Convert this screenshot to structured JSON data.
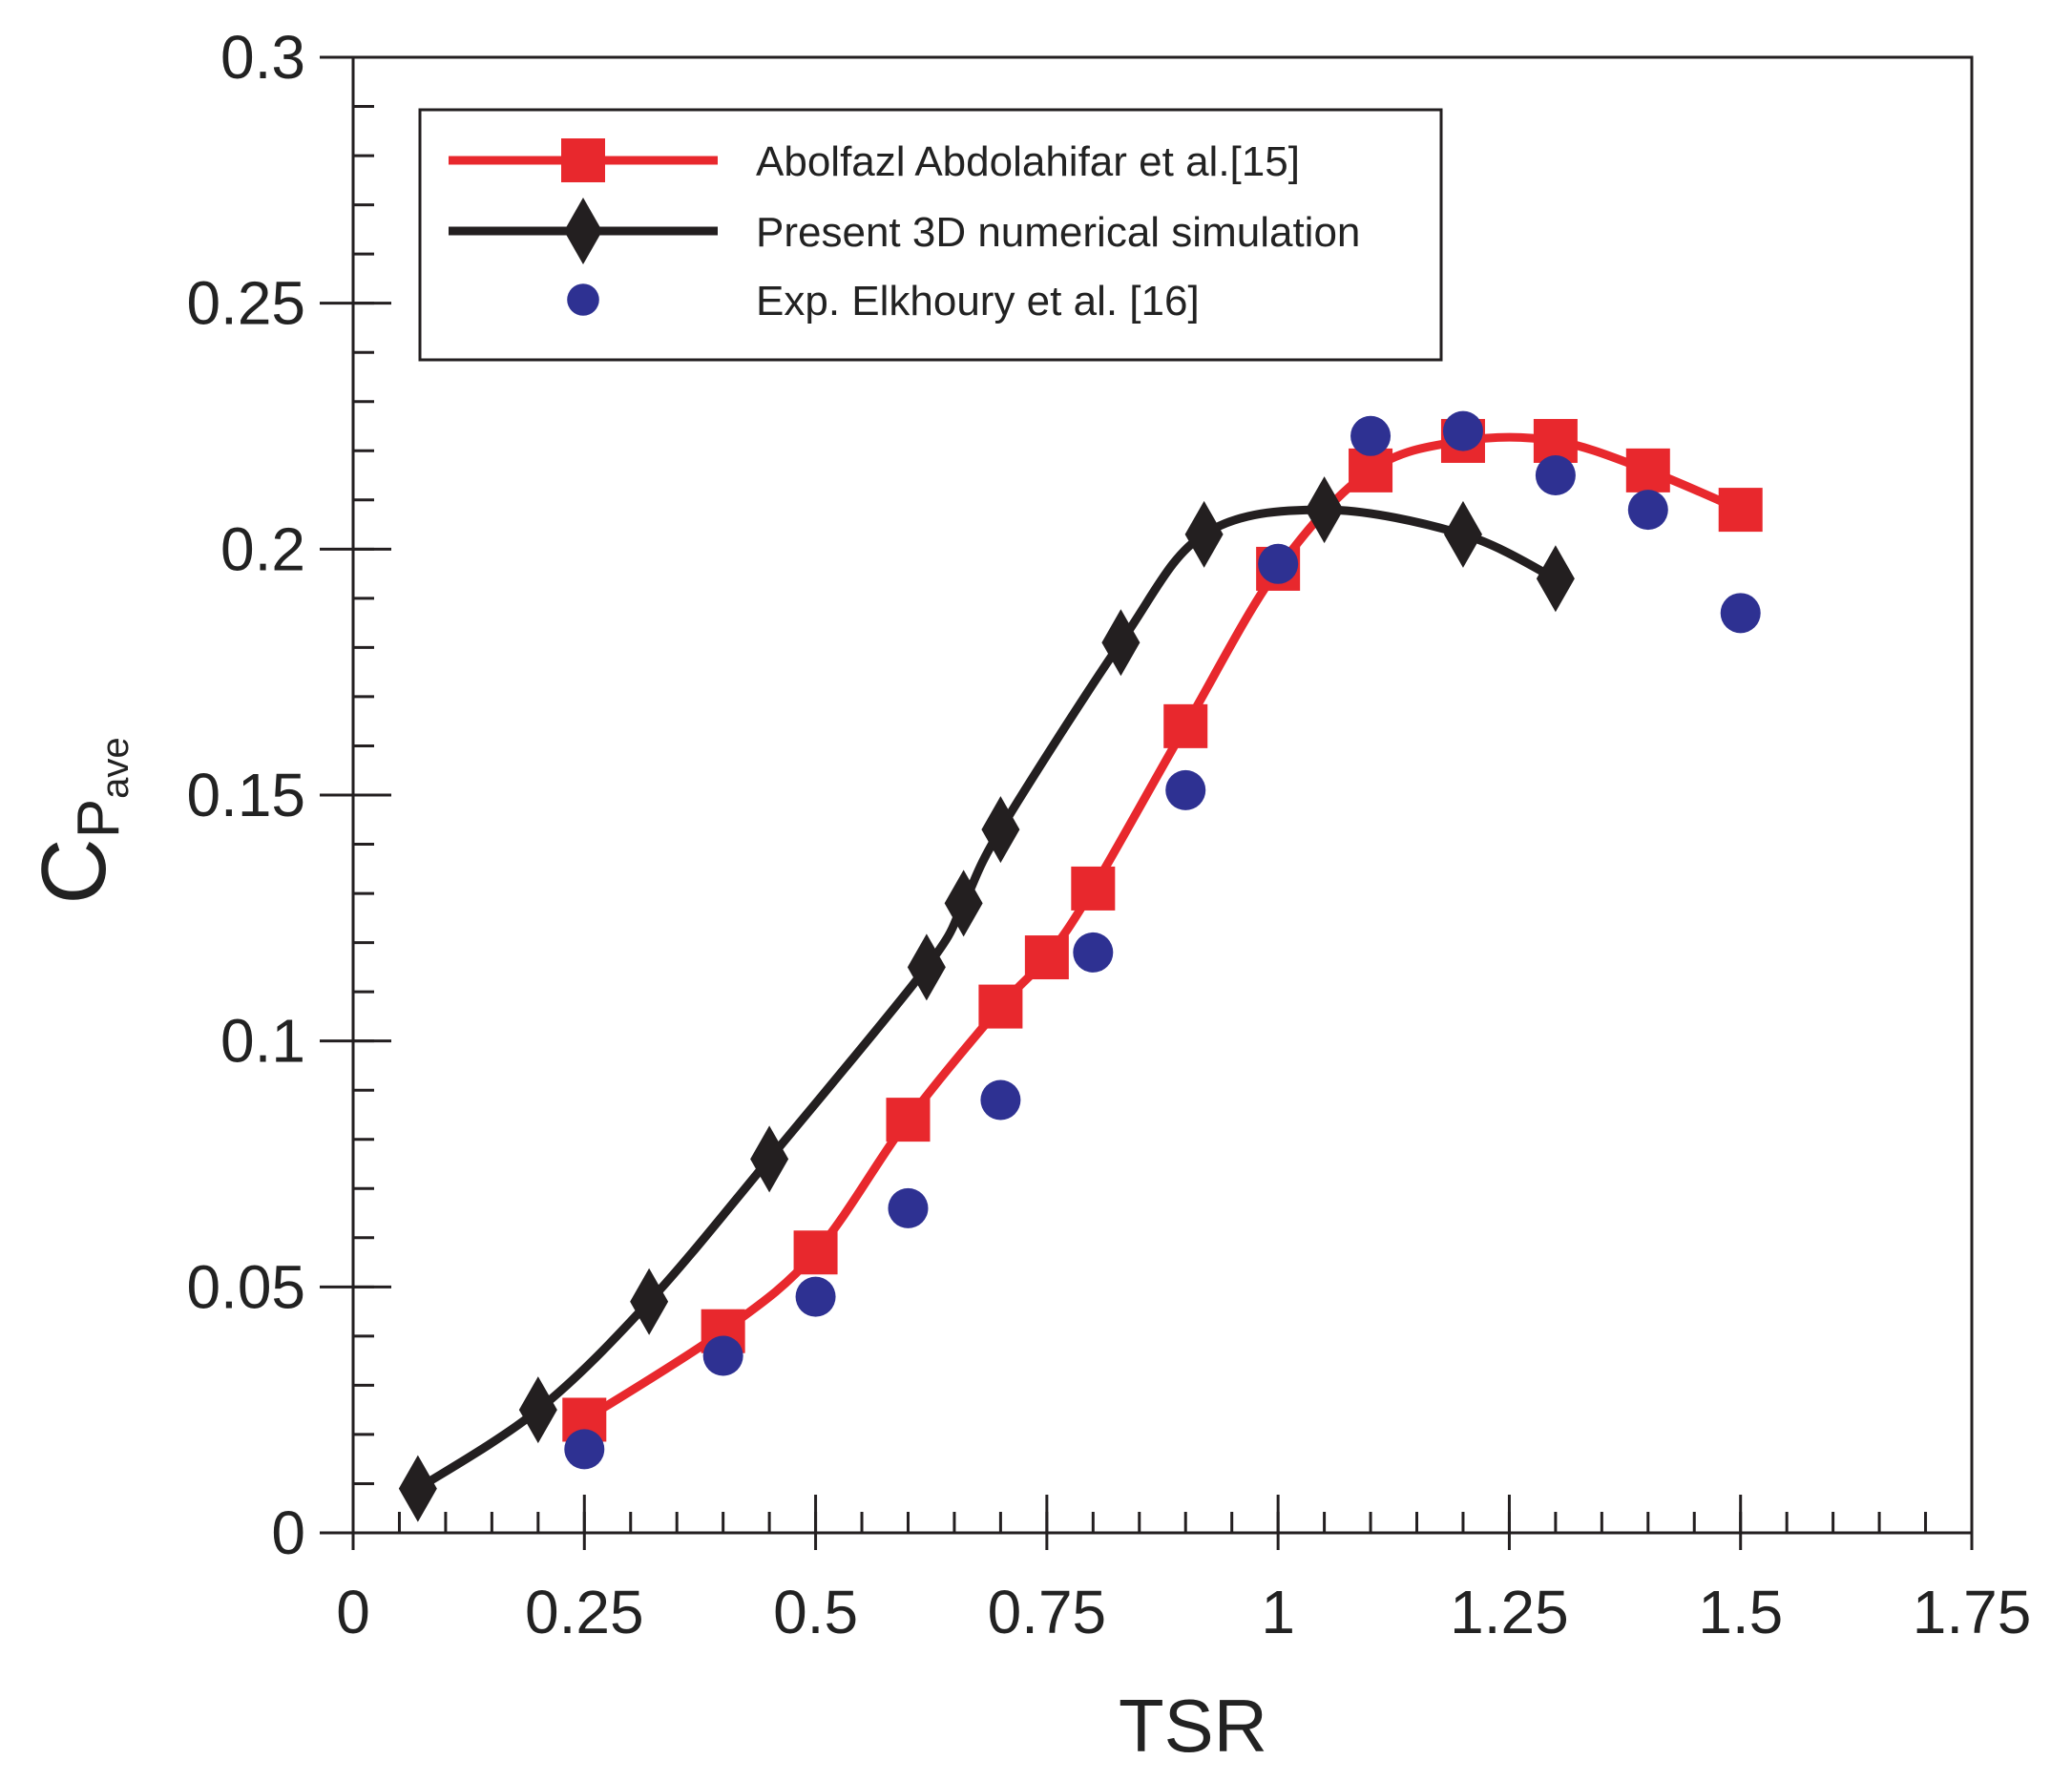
{
  "chart_data": {
    "type": "line",
    "title": "",
    "xlabel": "TSR",
    "ylabel": {
      "main": "C",
      "sub": "P",
      "subsub": "ave"
    },
    "xlim": [
      0,
      1.75
    ],
    "ylim": [
      0,
      0.3
    ],
    "x_ticks": [
      0,
      0.25,
      0.5,
      0.75,
      1,
      1.25,
      1.5,
      1.75
    ],
    "x_tick_labels": [
      "0",
      "0.25",
      "0.5",
      "0.75",
      "1",
      "1.25",
      "1.5",
      "1.75"
    ],
    "y_ticks": [
      0,
      0.05,
      0.1,
      0.15,
      0.2,
      0.25,
      0.3
    ],
    "y_tick_labels": [
      "0",
      "0.05",
      "0.1",
      "0.15",
      "0.2",
      "0.25",
      "0.3"
    ],
    "x_minor_step": 0.05,
    "y_minor_step": 0.01,
    "grid": false,
    "legend_position": "top-left",
    "series": [
      {
        "name": "Abolfazl Abdolahifar et al.[15]",
        "color": "#e8282d",
        "marker": "square",
        "line": true,
        "x": [
          0.25,
          0.4,
          0.5,
          0.6,
          0.7,
          0.75,
          0.8,
          0.9,
          1.0,
          1.1,
          1.2,
          1.3,
          1.4,
          1.5
        ],
        "y": [
          0.023,
          0.041,
          0.057,
          0.084,
          0.107,
          0.117,
          0.131,
          0.164,
          0.196,
          0.216,
          0.222,
          0.222,
          0.216,
          0.208
        ]
      },
      {
        "name": "Present 3D numerical simulation",
        "color": "#231f20",
        "marker": "diamond",
        "line": true,
        "x": [
          0.07,
          0.2,
          0.32,
          0.45,
          0.62,
          0.66,
          0.7,
          0.83,
          0.92,
          1.05,
          1.2,
          1.3
        ],
        "y": [
          0.009,
          0.025,
          0.047,
          0.076,
          0.115,
          0.128,
          0.143,
          0.181,
          0.203,
          0.208,
          0.203,
          0.194
        ]
      },
      {
        "name": "Exp. Elkhoury et  al. [16]",
        "color": "#2e3192",
        "marker": "circle",
        "line": false,
        "x": [
          0.25,
          0.4,
          0.5,
          0.6,
          0.7,
          0.8,
          0.9,
          1.0,
          1.1,
          1.2,
          1.3,
          1.4,
          1.5
        ],
        "y": [
          0.017,
          0.036,
          0.048,
          0.066,
          0.088,
          0.118,
          0.151,
          0.197,
          0.223,
          0.224,
          0.215,
          0.208,
          0.187
        ]
      }
    ]
  }
}
